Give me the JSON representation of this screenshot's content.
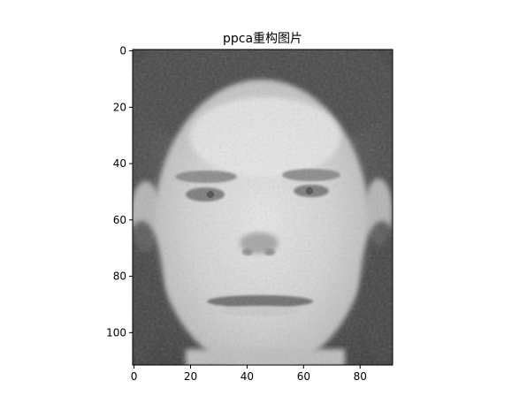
{
  "chart_data": {
    "type": "heatmap",
    "title": "ppca重构图片",
    "xlabel": "",
    "ylabel": "",
    "colormap": "gray",
    "image_shape": [
      112,
      92
    ],
    "xlim": [
      -0.5,
      91.5
    ],
    "ylim": [
      111.5,
      -0.5
    ],
    "y_inverted": true,
    "grid": false,
    "legend": "none",
    "x_ticks": [
      0,
      20,
      40,
      60,
      80
    ],
    "x_tick_labels": [
      "0",
      "20",
      "40",
      "60",
      "80"
    ],
    "y_ticks": [
      0,
      20,
      40,
      60,
      80,
      100
    ],
    "y_tick_labels": [
      "0",
      "20",
      "40",
      "60",
      "80",
      "100"
    ]
  }
}
